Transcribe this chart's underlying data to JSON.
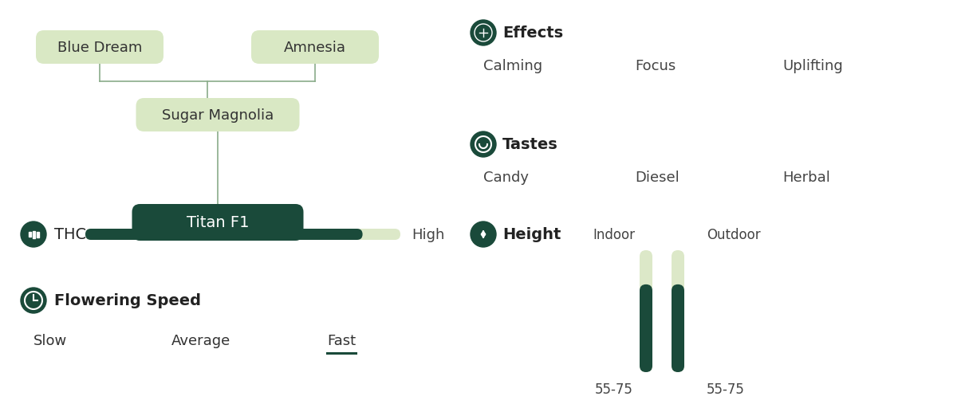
{
  "bg_color": "#ffffff",
  "dark_green": "#1a4a3a",
  "light_green_box": "#d9e8c4",
  "light_bar_color": "#dce8c8",
  "title": "Titan F1",
  "parent1": "Blue Dream",
  "parent2": "Amnesia",
  "mid_parent": "Sugar Magnolia",
  "effects_label": "Effects",
  "effects": [
    "Calming",
    "Focus",
    "Uplifting"
  ],
  "tastes_label": "Tastes",
  "tastes": [
    "Candy",
    "Diesel",
    "Herbal"
  ],
  "thc_label": "THC",
  "thc_level": "High",
  "thc_fill": 0.88,
  "flowering_label": "Flowering Speed",
  "flowering_levels": [
    "Slow",
    "Average",
    "Fast"
  ],
  "flowering_active": "Fast",
  "height_label": "Height",
  "height_indoor": "55-75",
  "height_outdoor": "55-75",
  "indoor_label": "Indoor",
  "outdoor_label": "Outdoor",
  "line_color": "#8aab8a"
}
